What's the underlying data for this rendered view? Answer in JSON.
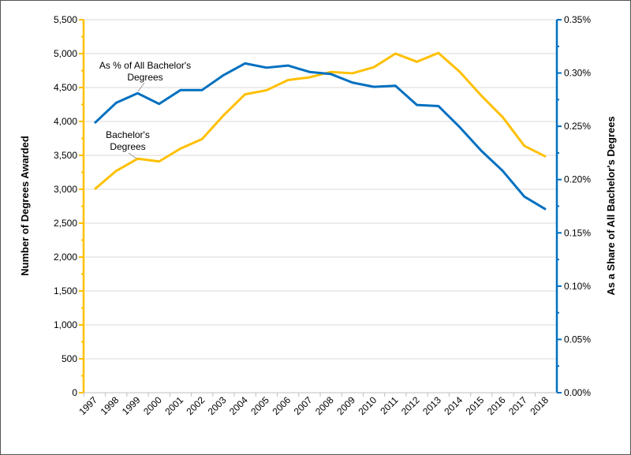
{
  "chart_data": {
    "type": "line",
    "x": [
      "1997",
      "1998",
      "1999",
      "2000",
      "2001",
      "2002",
      "2003",
      "2004",
      "2005",
      "2006",
      "2007",
      "2008",
      "2009",
      "2010",
      "2011",
      "2012",
      "2013",
      "2014",
      "2015",
      "2016",
      "2017",
      "2018"
    ],
    "series": [
      {
        "name": "Bachelor's Degrees",
        "axis": "left",
        "color": "#FFC000",
        "values": [
          3000,
          3270,
          3450,
          3410,
          3600,
          3740,
          4090,
          4400,
          4460,
          4610,
          4650,
          4730,
          4710,
          4800,
          5000,
          4880,
          5010,
          4730,
          4380,
          4060,
          3640,
          3480
        ]
      },
      {
        "name": "As % of All Bachelor's Degrees",
        "axis": "right",
        "color": "#0070C0",
        "values": [
          0.253,
          0.272,
          0.281,
          0.271,
          0.284,
          0.284,
          0.298,
          0.309,
          0.305,
          0.307,
          0.301,
          0.299,
          0.291,
          0.287,
          0.288,
          0.27,
          0.269,
          0.249,
          0.227,
          0.208,
          0.184,
          0.172
        ]
      }
    ],
    "ylabel": "Number of Degrees Awarded",
    "y2label": "As a Share of All Bachelor's Degrees",
    "ylim": [
      0,
      5500
    ],
    "y2lim": [
      0,
      0.35
    ],
    "yticks": [
      "0",
      "500",
      "1,000",
      "1,500",
      "2,000",
      "2,500",
      "3,000",
      "3,500",
      "4,000",
      "4,500",
      "5,000",
      "5,500"
    ],
    "y2ticks": [
      "0.00%",
      "0.05%",
      "0.10%",
      "0.15%",
      "0.20%",
      "0.25%",
      "0.30%",
      "0.35%"
    ],
    "annotations": {
      "share_label": [
        "As % of All Bachelor's",
        "Degrees"
      ],
      "count_label": [
        "Bachelor's",
        "Degrees"
      ]
    },
    "grid": true,
    "legend": "none"
  }
}
